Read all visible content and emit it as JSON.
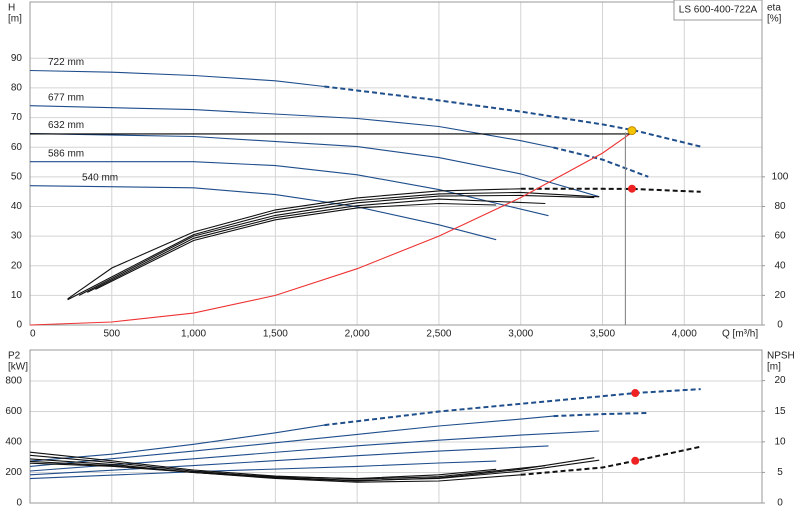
{
  "chart_data": [
    {
      "type": "line",
      "title": "LS 600-400-722A",
      "x_label": "Q [m³/h]",
      "y_label": [
        "H",
        "[m]"
      ],
      "y2_label": [
        "eta",
        "[%]"
      ],
      "xlim": [
        0,
        4475
      ],
      "ylim": [
        0,
        109
      ],
      "y2lim": [
        0,
        218
      ],
      "grid": true,
      "show_xtick_labels": true,
      "xticks": [
        0,
        500,
        {
          "value": 1000,
          "label": "1,000"
        },
        {
          "value": 1500,
          "label": "1,500"
        },
        {
          "value": 2000,
          "label": "2,000"
        },
        {
          "value": 2500,
          "label": "2,500"
        },
        {
          "value": 3000,
          "label": "3,000"
        },
        {
          "value": 3500,
          "label": "3,500"
        },
        {
          "value": 4000,
          "label": "4,000"
        }
      ],
      "yticks": [
        0,
        10,
        20,
        30,
        40,
        50,
        60,
        70,
        80,
        90
      ],
      "y2ticks": [
        0,
        20,
        40,
        60,
        80,
        100
      ],
      "series": [
        {
          "label": "722 mm",
          "color": "#1f4e8c",
          "dash": false,
          "x": [
            0,
            500,
            1000,
            1500,
            1800
          ],
          "values": [
            85.9,
            85.3,
            84.2,
            82.4,
            80.5
          ]
        },
        {
          "color": "#1f4e8c",
          "dash": true,
          "x": [
            1800,
            2500,
            3000,
            3500,
            3700,
            4100
          ],
          "values": [
            80.5,
            75.8,
            72,
            67.7,
            65.6,
            60.2
          ]
        },
        {
          "label": "677 mm",
          "color": "#1f4e8c",
          "dash": false,
          "x": [
            0,
            1000,
            2000,
            2500,
            3000,
            3200
          ],
          "values": [
            74,
            72.7,
            69.7,
            67,
            62.2,
            59.9
          ]
        },
        {
          "color": "#1f4e8c",
          "dash": true,
          "x": [
            3200,
            3500,
            3780
          ],
          "values": [
            59.9,
            55.8,
            50
          ]
        },
        {
          "label": "632 mm",
          "color": "#1f4e8c",
          "dash": false,
          "x": [
            0,
            1000,
            2000,
            2500,
            3000,
            3480
          ],
          "values": [
            64.6,
            63.6,
            60.2,
            56.5,
            51,
            43.3
          ]
        },
        {
          "label": "586 mm",
          "color": "#1f4e8c",
          "dash": false,
          "x": [
            0,
            1000,
            1500,
            2000,
            2500,
            3170
          ],
          "values": [
            55.1,
            55.1,
            53.8,
            50.7,
            45.7,
            36.9
          ]
        },
        {
          "label": "540 mm",
          "color": "#1f4e8c",
          "dash": false,
          "x": [
            0,
            1000,
            1500,
            2000,
            2500,
            2850
          ],
          "values": [
            47,
            46.3,
            44,
            39.9,
            33.8,
            28.8
          ]
        },
        {
          "color": "#111111",
          "dash": false,
          "axis": "y2",
          "x": [
            230,
            500,
            1000,
            1500,
            2000,
            2500,
            3000
          ],
          "values": [
            17.6,
            38.5,
            62.8,
            77.7,
            85.8,
            90.5,
            91.9
          ]
        },
        {
          "color": "#111111",
          "dash": true,
          "axis": "y2",
          "x": [
            3000,
            3500,
            3700,
            4100
          ],
          "values": [
            91.9,
            91.9,
            91.8,
            89.9
          ]
        },
        {
          "color": "#111111",
          "dash": false,
          "axis": "y2",
          "x": [
            230,
            1000,
            1500,
            2000,
            2500,
            3000,
            3480
          ],
          "values": [
            17,
            61,
            76,
            84,
            88.5,
            89.5,
            86.5
          ]
        },
        {
          "color": "#111111",
          "dash": false,
          "axis": "y2",
          "x": [
            300,
            1000,
            1500,
            2000,
            2500,
            3000,
            3450
          ],
          "values": [
            20,
            60,
            74,
            82.5,
            87,
            87.5,
            86
          ]
        },
        {
          "color": "#111111",
          "dash": false,
          "axis": "y2",
          "x": [
            350,
            1000,
            1500,
            2000,
            2500,
            3150
          ],
          "values": [
            22,
            58.5,
            72.5,
            80.5,
            85,
            82
          ]
        },
        {
          "color": "#111111",
          "dash": false,
          "axis": "y2",
          "x": [
            400,
            1000,
            1500,
            2000,
            2500,
            2850
          ],
          "values": [
            24,
            57,
            71,
            79,
            82,
            81
          ]
        },
        {
          "color": "#ee3333",
          "dash": false,
          "x": [
            0,
            500,
            1000,
            1500,
            2000,
            2500,
            3000,
            3500,
            3680
          ],
          "values": [
            0,
            1,
            4,
            10,
            19,
            30,
            43,
            58,
            65
          ]
        },
        {
          "color": "#000000",
          "dash": false,
          "x": [
            0,
            3680
          ],
          "values": [
            64.5,
            64.5
          ]
        },
        {
          "color": "#888888",
          "dash": false,
          "x": [
            3640,
            3640
          ],
          "values": [
            0,
            65
          ]
        },
        {
          "color": "#ee2222",
          "marker": true,
          "axis": "y2",
          "x": [
            3680
          ],
          "values": [
            92
          ]
        },
        {
          "color": "#f5c400",
          "marker": true,
          "x": [
            3680
          ],
          "values": [
            65.6
          ]
        }
      ]
    },
    {
      "type": "line",
      "y_label": [
        "P2",
        "[kW]"
      ],
      "y2_label": [
        "NPSH",
        "[m]"
      ],
      "xlim": [
        0,
        4475
      ],
      "ylim": [
        0,
        1003
      ],
      "y2lim": [
        0,
        25
      ],
      "grid": true,
      "show_xtick_labels": false,
      "xticks": [
        0,
        500,
        1000,
        1500,
        2000,
        2500,
        3000,
        3500,
        4000
      ],
      "yticks": [
        0,
        200,
        400,
        600,
        800
      ],
      "y2ticks": [
        0,
        5,
        10,
        15,
        20
      ],
      "series": [
        {
          "color": "#1f4e8c",
          "dash": false,
          "x": [
            0,
            500,
            1000,
            1500,
            1800
          ],
          "values": [
            275,
            320,
            385,
            460,
            511
          ]
        },
        {
          "color": "#1f4e8c",
          "dash": true,
          "x": [
            1800,
            2500,
            3000,
            3500,
            3700,
            4100
          ],
          "values": [
            511,
            600,
            650,
            700,
            721,
            747
          ]
        },
        {
          "color": "#1f4e8c",
          "dash": false,
          "x": [
            0,
            1000,
            2000,
            2500,
            3000,
            3200
          ],
          "values": [
            240,
            340,
            450,
            505,
            550,
            570
          ]
        },
        {
          "color": "#1f4e8c",
          "dash": true,
          "x": [
            3200,
            3500,
            3780
          ],
          "values": [
            570,
            583,
            590
          ]
        },
        {
          "color": "#1f4e8c",
          "dash": false,
          "x": [
            0,
            1000,
            2000,
            2500,
            3000,
            3480
          ],
          "values": [
            210,
            290,
            375,
            412,
            445,
            472
          ]
        },
        {
          "color": "#1f4e8c",
          "dash": false,
          "x": [
            0,
            1000,
            2000,
            2500,
            3170
          ],
          "values": [
            185,
            245,
            310,
            340,
            374
          ]
        },
        {
          "color": "#1f4e8c",
          "dash": false,
          "x": [
            0,
            1000,
            2000,
            2500,
            2850
          ],
          "values": [
            160,
            205,
            240,
            262,
            275
          ]
        },
        {
          "color": "#111111",
          "dash": false,
          "axis": "y2",
          "x": [
            0,
            500,
            1000,
            1500,
            2000,
            2500,
            3000
          ],
          "values": [
            7.2,
            6.3,
            5,
            4,
            3.4,
            3.6,
            4.6
          ]
        },
        {
          "color": "#111111",
          "dash": true,
          "axis": "y2",
          "x": [
            3000,
            3500,
            3700,
            4100
          ],
          "values": [
            4.6,
            5.8,
            6.9,
            9.2
          ]
        },
        {
          "color": "#111111",
          "dash": false,
          "axis": "y2",
          "x": [
            0,
            500,
            1000,
            1500,
            2000,
            2500,
            3000,
            3480
          ],
          "values": [
            7.8,
            6.6,
            5.2,
            4.2,
            3.7,
            4,
            5.2,
            7
          ]
        },
        {
          "color": "#111111",
          "dash": false,
          "axis": "y2",
          "x": [
            0,
            500,
            1000,
            1500,
            2000,
            2500,
            3000,
            3450
          ],
          "values": [
            6.8,
            6.1,
            5,
            4.1,
            3.6,
            4.1,
            5.5,
            7.4
          ]
        },
        {
          "color": "#111111",
          "dash": false,
          "axis": "y2",
          "x": [
            0,
            500,
            1000,
            1500,
            2000,
            2500,
            3150
          ],
          "values": [
            8.3,
            6.9,
            5.4,
            4.4,
            3.9,
            4.3,
            6.1
          ]
        },
        {
          "color": "#111111",
          "dash": false,
          "axis": "y2",
          "x": [
            0,
            500,
            1000,
            1500,
            2000,
            2500,
            2850
          ],
          "values": [
            6.5,
            6,
            5,
            4.3,
            4,
            4.6,
            5.5
          ]
        },
        {
          "color": "#ee2222",
          "marker": true,
          "x": [
            3700
          ],
          "values": [
            721
          ]
        },
        {
          "color": "#ee2222",
          "marker": true,
          "axis": "y2",
          "x": [
            3700
          ],
          "values": [
            6.9
          ]
        }
      ]
    }
  ]
}
